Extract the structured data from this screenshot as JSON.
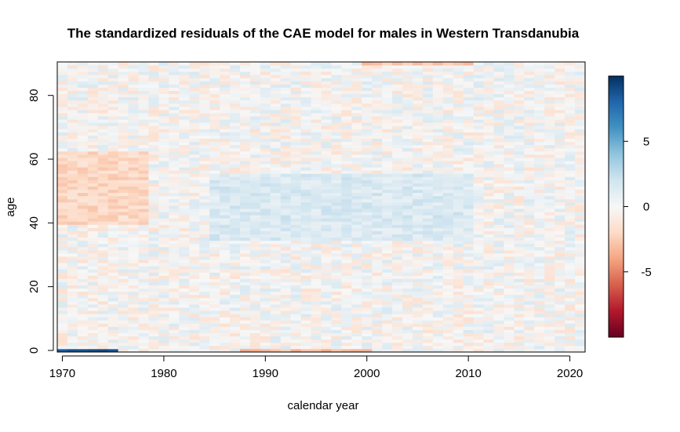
{
  "chart_data": {
    "type": "heatmap",
    "title": "The standardized residuals of the CAE model for males in Western Transdanubia",
    "xlabel": "calendar year",
    "ylabel": "age",
    "x_range": [
      1970,
      2021
    ],
    "y_range": [
      0,
      90
    ],
    "xlim": [
      1969.5,
      2021.5
    ],
    "ylim": [
      -0.5,
      90.5
    ],
    "x_ticks": [
      "1970",
      "1980",
      "1990",
      "2000",
      "2010",
      "2020"
    ],
    "y_ticks": [
      "0",
      "20",
      "40",
      "60",
      "80"
    ],
    "colorbar": {
      "ticks": [
        "5",
        "0",
        "-5"
      ],
      "range": [
        -10,
        10
      ],
      "palette": [
        "#67001f",
        "#b2182b",
        "#d6604d",
        "#f4a582",
        "#fddbc7",
        "#f7f7f7",
        "#d1e5f0",
        "#92c5de",
        "#4393c3",
        "#2166ac",
        "#053061"
      ]
    },
    "notable_patterns": [
      {
        "years": [
          1970,
          1978
        ],
        "ages": [
          40,
          62
        ],
        "value": -2
      },
      {
        "years": [
          1985,
          2010
        ],
        "ages": [
          35,
          55
        ],
        "value": 1.5
      },
      {
        "years": [
          1970,
          1975
        ],
        "ages": [
          0,
          0
        ],
        "value": 9
      },
      {
        "years": [
          1988,
          2000
        ],
        "ages": [
          0,
          0
        ],
        "value": -3
      },
      {
        "years": [
          2000,
          2010
        ],
        "ages": [
          90,
          90
        ],
        "value": -3
      }
    ],
    "grid": false,
    "legend": "right"
  }
}
